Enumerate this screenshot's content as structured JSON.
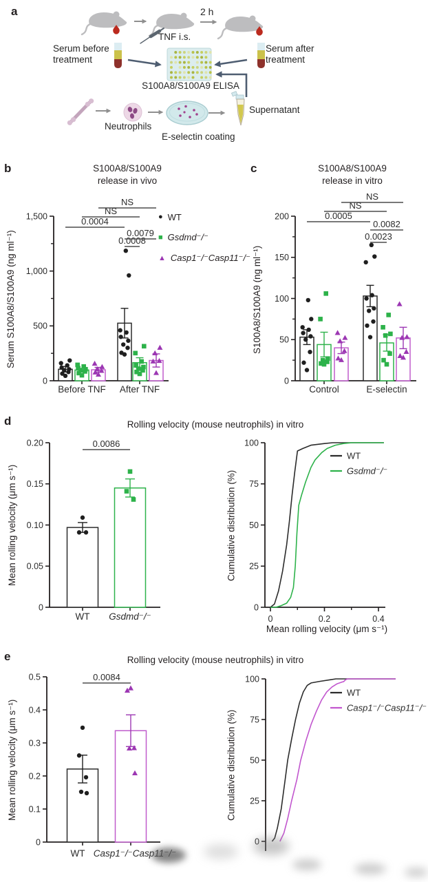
{
  "figure": {
    "panel_labels": {
      "a": "a",
      "b": "b",
      "c": "c",
      "d": "d",
      "e": "e"
    }
  },
  "panel_a": {
    "labels": {
      "two_h": "2 h",
      "tnf": "TNF i.s.",
      "serum_before": "Serum before treatment",
      "serum_after": "Serum after treatment",
      "elisa": "S100A8/S100A9 ELISA",
      "neutrophils": "Neutrophils",
      "e_selectin": "E-selectin coating",
      "supernatant": "Supernatant"
    }
  },
  "panels": {
    "d": {
      "title": "Rolling velocity (mouse neutrophils) in vitro"
    },
    "e": {
      "title": "Rolling velocity (mouse neutrophils) in vitro"
    }
  },
  "colors": {
    "black": "#1f1f1f",
    "green": "#2db24a",
    "purple": "#9c37b3",
    "purple_light": "#c05ccc",
    "axis": "#231f20",
    "sig_line": "#4c4c4c",
    "arrow_dark": "#4e5d71",
    "arrow_gray": "#8f8f8f"
  },
  "chart_data": [
    {
      "id": "b",
      "type": "bar",
      "subtype": "grouped-scatter-bar",
      "title": "S100A8/S100A9\nrelease in vivo",
      "ylabel": "Serum S100A8/S100A9 (ng ml⁻¹)",
      "ylim": [
        0,
        1500
      ],
      "yticks": [
        0,
        500,
        1000,
        1500
      ],
      "ytick_labels": [
        "0",
        "500",
        "1,000",
        "1,500"
      ],
      "yminor": [
        250,
        750,
        1250
      ],
      "groups": [
        "Before TNF",
        "After TNF"
      ],
      "series": [
        {
          "name": "WT",
          "marker": "circle",
          "color": "#1f1f1f",
          "bar_stroke": "#2b2b2b"
        },
        {
          "name": "Gsdmd⁻/⁻",
          "marker": "square",
          "color": "#2db24a",
          "bar_stroke": "#2db24a"
        },
        {
          "name": "Casp1⁻/⁻Casp11⁻/⁻",
          "marker": "triangle",
          "color": "#9c37b3",
          "bar_stroke": "#c05ccc"
        }
      ],
      "means": [
        [
          105,
          98,
          100
        ],
        [
          525,
          165,
          185
        ]
      ],
      "sems": [
        [
          25,
          15,
          22
        ],
        [
          135,
          45,
          60
        ]
      ],
      "points": [
        [
          [
            45,
            65,
            80,
            95,
            105,
            120,
            140,
            160,
            185
          ],
          [
            50,
            70,
            85,
            95,
            105,
            115,
            130,
            145
          ],
          [
            55,
            75,
            90,
            105,
            125,
            155
          ]
        ],
        [
          [
            240,
            255,
            300,
            330,
            365,
            400,
            440,
            460,
            960,
            1185
          ],
          [
            63,
            80,
            95,
            110,
            125,
            140,
            176,
            252,
            315
          ],
          [
            70,
            175,
            180,
            250,
            300
          ]
        ]
      ],
      "significance": [
        {
          "label": "0.0008",
          "a": [
            1,
            0
          ],
          "b": [
            1,
            1
          ]
        },
        {
          "label": "0.0079",
          "a": [
            1,
            0
          ],
          "b": [
            1,
            2
          ]
        },
        {
          "label": "0.0004",
          "a": [
            0,
            0
          ],
          "b": [
            1,
            0
          ]
        },
        {
          "label": "NS",
          "a": [
            0,
            1
          ],
          "b": [
            1,
            1
          ]
        },
        {
          "label": "NS",
          "a": [
            0,
            2
          ],
          "b": [
            1,
            2
          ]
        }
      ]
    },
    {
      "id": "c",
      "type": "bar",
      "subtype": "grouped-scatter-bar",
      "title": "S100A8/S100A9\nrelease in vitro",
      "ylabel": "S100A8/S100A9 (ng ml⁻¹)",
      "ylim": [
        0,
        200
      ],
      "yticks": [
        0,
        50,
        100,
        150,
        200
      ],
      "ytick_labels": [
        "0",
        "50",
        "100",
        "150",
        "200"
      ],
      "yminor": [
        25,
        75,
        125,
        175
      ],
      "groups": [
        "Control",
        "E-selectin"
      ],
      "series": [
        {
          "name": "WT",
          "marker": "circle",
          "color": "#1f1f1f",
          "bar_stroke": "#2b2b2b"
        },
        {
          "name": "Gsdmd⁻/⁻",
          "marker": "square",
          "color": "#2db24a",
          "bar_stroke": "#2db24a"
        },
        {
          "name": "Casp1⁻/⁻Casp11⁻/⁻",
          "marker": "triangle",
          "color": "#9c37b3",
          "bar_stroke": "#c05ccc"
        }
      ],
      "means": [
        [
          53,
          44,
          40
        ],
        [
          103,
          46,
          52
        ]
      ],
      "sems": [
        [
          9,
          15,
          7
        ],
        [
          13,
          10,
          13
        ]
      ],
      "points": [
        [
          [
            13,
            22,
            35,
            50,
            54,
            58,
            62,
            65,
            75,
            98
          ],
          [
            20,
            21,
            23,
            25,
            27,
            75,
            106
          ],
          [
            25,
            27,
            36,
            48,
            52,
            58
          ]
        ],
        [
          [
            53,
            67,
            72,
            85,
            88,
            100,
            104,
            144,
            151,
            165
          ],
          [
            20,
            25,
            33,
            55,
            57,
            65,
            80
          ],
          [
            28,
            30,
            35,
            52,
            53,
            93
          ]
        ]
      ],
      "significance": [
        {
          "label": "0.0023",
          "a": [
            1,
            0
          ],
          "b": [
            1,
            1
          ]
        },
        {
          "label": "0.0082",
          "a": [
            1,
            0
          ],
          "b": [
            1,
            2
          ]
        },
        {
          "label": "0.0005",
          "a": [
            0,
            0
          ],
          "b": [
            1,
            0
          ]
        },
        {
          "label": "NS",
          "a": [
            0,
            1
          ],
          "b": [
            1,
            1
          ]
        },
        {
          "label": "NS",
          "a": [
            0,
            2
          ],
          "b": [
            1,
            2
          ]
        }
      ]
    },
    {
      "id": "d_bar",
      "type": "bar",
      "subtype": "scatter-bar",
      "ylabel": "Mean rolling velocity (μm s⁻¹)",
      "ylim": [
        0,
        0.2
      ],
      "yticks": [
        0,
        0.05,
        0.1,
        0.15,
        0.2
      ],
      "ytick_labels": [
        "0",
        "0.05",
        "0.10",
        "0.15",
        "0.20"
      ],
      "categories": [
        {
          "label": "WT",
          "marker": "circle",
          "color": "#1f1f1f",
          "bar_stroke": "#2b2b2b"
        },
        {
          "label": "Gsdmd⁻/⁻",
          "marker": "square",
          "color": "#2db24a",
          "bar_stroke": "#2db24a"
        }
      ],
      "means": [
        0.097,
        0.145
      ],
      "sems": [
        0.006,
        0.011
      ],
      "points": [
        [
          0.109,
          0.091,
          0.091
        ],
        [
          0.165,
          0.141,
          0.131
        ]
      ],
      "significance": [
        {
          "label": "0.0086",
          "a": 0,
          "b": 1
        }
      ]
    },
    {
      "id": "d_cdf",
      "type": "line",
      "subtype": "cumulative-distribution",
      "ylabel": "Cumulative distribution (%)",
      "xlabel": "Mean rolling velocity (μm s⁻¹)",
      "ylim": [
        0,
        100
      ],
      "yticks": [
        0,
        25,
        50,
        75,
        100
      ],
      "xlim": [
        0,
        0.4
      ],
      "xticks": [
        0,
        0.2,
        0.4
      ],
      "xtick_labels": [
        "0",
        "0.2",
        "0.4"
      ],
      "xminor": [
        0.1,
        0.3
      ],
      "legend_position": "top-right",
      "series": [
        {
          "name": "WT",
          "color": "#2b2b2b",
          "points": [
            [
              0,
              0
            ],
            [
              0.015,
              2
            ],
            [
              0.03,
              10
            ],
            [
              0.045,
              22
            ],
            [
              0.06,
              38
            ],
            [
              0.07,
              52
            ],
            [
              0.08,
              68
            ],
            [
              0.09,
              82
            ],
            [
              0.1,
              95
            ],
            [
              0.12,
              96.5
            ],
            [
              0.15,
              98.5
            ],
            [
              0.2,
              99.5
            ],
            [
              0.23,
              100
            ],
            [
              0.42,
              100
            ]
          ]
        },
        {
          "name": "Gsdmd⁻/⁻",
          "color": "#2db24a",
          "points": [
            [
              0,
              0
            ],
            [
              0.02,
              0
            ],
            [
              0.04,
              1
            ],
            [
              0.06,
              2.5
            ],
            [
              0.075,
              6
            ],
            [
              0.085,
              12
            ],
            [
              0.092,
              25
            ],
            [
              0.098,
              45
            ],
            [
              0.105,
              62
            ],
            [
              0.115,
              68
            ],
            [
              0.13,
              76
            ],
            [
              0.15,
              85
            ],
            [
              0.165,
              89.5
            ],
            [
              0.19,
              94
            ],
            [
              0.21,
              96.5
            ],
            [
              0.24,
              98.5
            ],
            [
              0.27,
              99.5
            ],
            [
              0.3,
              100
            ],
            [
              0.42,
              100
            ]
          ]
        }
      ]
    },
    {
      "id": "e_bar",
      "type": "bar",
      "subtype": "scatter-bar",
      "ylabel": "Mean rolling velocity (μm s⁻¹)",
      "ylim": [
        0,
        0.5
      ],
      "yticks": [
        0,
        0.1,
        0.2,
        0.3,
        0.4,
        0.5
      ],
      "ytick_labels": [
        "0",
        "0.1",
        "0.2",
        "0.3",
        "0.4",
        "0.5"
      ],
      "categories": [
        {
          "label": "WT",
          "marker": "circle",
          "color": "#1f1f1f",
          "bar_stroke": "#2b2b2b"
        },
        {
          "label": "Casp1⁻/⁻Casp11⁻/⁻",
          "marker": "triangle",
          "color": "#9c37b3",
          "bar_stroke": "#c05ccc"
        }
      ],
      "means": [
        0.221,
        0.337
      ],
      "sems": [
        0.042,
        0.048
      ],
      "points": [
        [
          0.346,
          0.262,
          0.196,
          0.152,
          0.148
        ],
        [
          0.465,
          0.458,
          0.284,
          0.283,
          0.208
        ]
      ],
      "significance": [
        {
          "label": "0.0084",
          "a": 0,
          "b": 1
        }
      ]
    },
    {
      "id": "e_cdf",
      "type": "line",
      "subtype": "cumulative-distribution",
      "ylabel": "Cumulative distribution (%)",
      "ylim": [
        0,
        100
      ],
      "yticks": [
        0,
        25,
        50,
        75,
        100
      ],
      "x_axis_not_visible": true,
      "x_unit": "fraction-of-axis",
      "legend_position": "top-right",
      "series": [
        {
          "name": "WT",
          "color": "#2b2b2b",
          "points": [
            [
              0.05,
              0
            ],
            [
              0.07,
              2
            ],
            [
              0.09,
              8
            ],
            [
              0.12,
              20
            ],
            [
              0.15,
              38
            ],
            [
              0.17,
              50
            ],
            [
              0.2,
              63
            ],
            [
              0.23,
              75
            ],
            [
              0.26,
              85
            ],
            [
              0.29,
              92
            ],
            [
              0.32,
              96
            ],
            [
              0.35,
              97.5
            ],
            [
              0.42,
              98.5
            ],
            [
              0.5,
              99.5
            ],
            [
              0.54,
              100
            ],
            [
              1,
              100
            ]
          ]
        },
        {
          "name": "Casp1⁻/⁻Casp11⁻/⁻",
          "color": "#c156ce",
          "points": [
            [
              0.11,
              0
            ],
            [
              0.14,
              5
            ],
            [
              0.17,
              14
            ],
            [
              0.2,
              25
            ],
            [
              0.24,
              38
            ],
            [
              0.27,
              50
            ],
            [
              0.31,
              62
            ],
            [
              0.35,
              72
            ],
            [
              0.39,
              80
            ],
            [
              0.43,
              87
            ],
            [
              0.47,
              92
            ],
            [
              0.51,
              95
            ],
            [
              0.55,
              97
            ],
            [
              0.585,
              98
            ],
            [
              0.6,
              98.3
            ],
            [
              0.615,
              99.5
            ],
            [
              0.63,
              100
            ],
            [
              1,
              100
            ]
          ]
        }
      ]
    }
  ]
}
